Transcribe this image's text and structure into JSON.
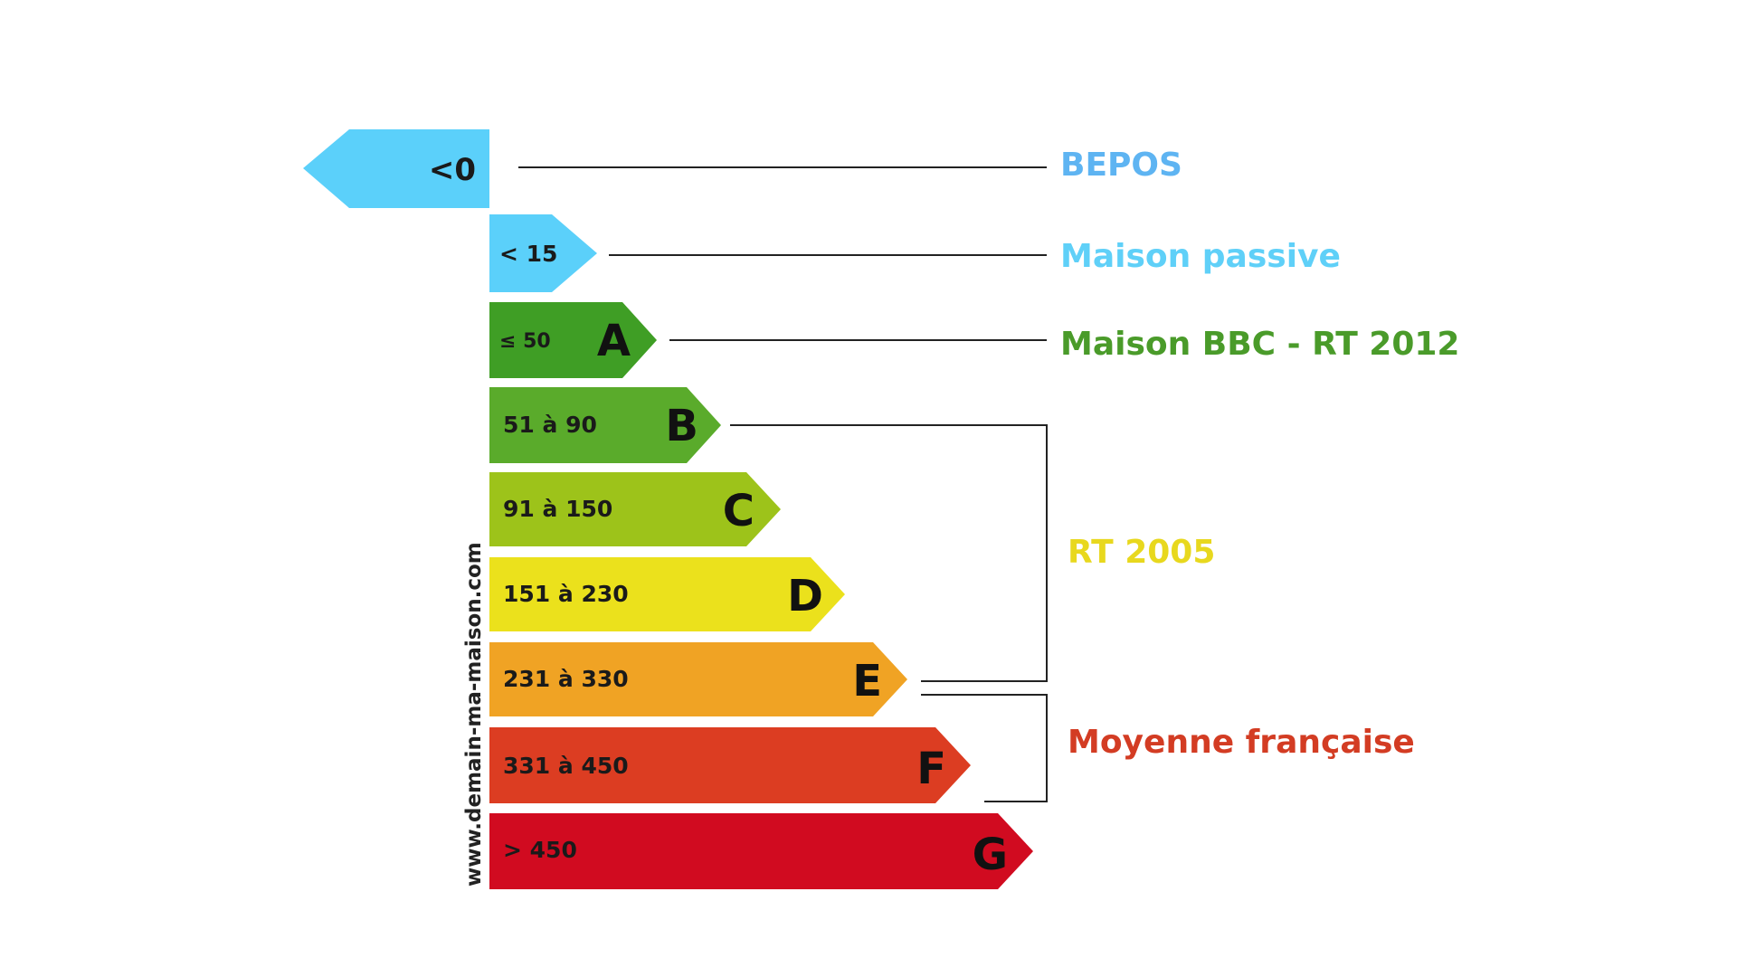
{
  "bands": [
    {
      "id": "bepos",
      "range": "<0",
      "letter": "",
      "color": "#5bd0fa"
    },
    {
      "id": "passive",
      "range": "< 15",
      "letter": "",
      "color": "#5bd0fa"
    },
    {
      "id": "a",
      "range": "≤ 50",
      "letter": "A",
      "color": "#3f9e25"
    },
    {
      "id": "b",
      "range": "51 à 90",
      "letter": "B",
      "color": "#5aab2b"
    },
    {
      "id": "c",
      "range": "91 à 150",
      "letter": "C",
      "color": "#9dc31a"
    },
    {
      "id": "d",
      "range": "151 à 230",
      "letter": "D",
      "color": "#ebe11c"
    },
    {
      "id": "e",
      "range": "231 à 330",
      "letter": "E",
      "color": "#f0a324"
    },
    {
      "id": "f",
      "range": "331 à 450",
      "letter": "F",
      "color": "#dc3d22"
    },
    {
      "id": "g",
      "range": "> 450",
      "letter": "G",
      "color": "#d10b20"
    }
  ],
  "labels": {
    "bepos": {
      "text": "BEPOS",
      "color": "#5eb4f2"
    },
    "passive": {
      "text": "Maison passive",
      "color": "#5fd0f8"
    },
    "bbc": {
      "text": "Maison BBC - RT 2012",
      "color": "#4a9b2a"
    },
    "rt2005": {
      "text": "RT 2005",
      "color": "#e8d81e"
    },
    "moyenne": {
      "text": "Moyenne française",
      "color": "#d33c23"
    }
  },
  "watermark": "www.demain-ma-maison.com"
}
